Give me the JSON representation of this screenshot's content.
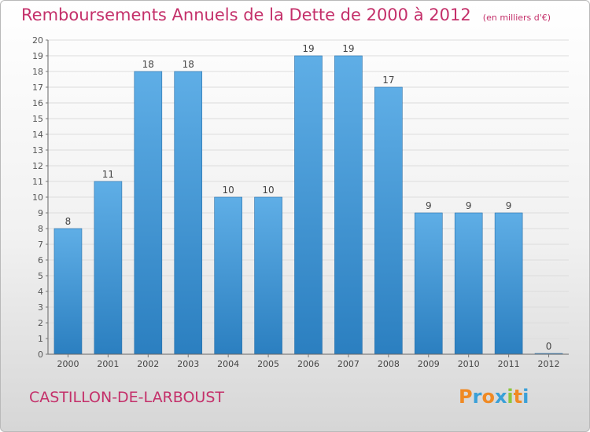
{
  "title": "Remboursements Annuels de la Dette de 2000 à 2012",
  "subtitle": "(en milliers d'€)",
  "commune": "CASTILLON-DE-LARBOUST",
  "logo": {
    "letters": [
      "P",
      "r",
      "o",
      "x",
      "i",
      "t",
      "i"
    ],
    "colors": [
      "#f08a24",
      "#3aa0d8",
      "#f08a24",
      "#3aa0d8",
      "#8cc63e",
      "#f08a24",
      "#3aa0d8"
    ]
  },
  "colors": {
    "bar_top": "#5faee6",
    "bar_bottom": "#2b7fc0",
    "accent": "#c4306a"
  },
  "chart_data": {
    "type": "bar",
    "categories": [
      "2000",
      "2001",
      "2002",
      "2003",
      "2004",
      "2005",
      "2006",
      "2007",
      "2008",
      "2009",
      "2010",
      "2011",
      "2012"
    ],
    "values": [
      8,
      11,
      18,
      18,
      10,
      10,
      19,
      19,
      17,
      9,
      9,
      9,
      0
    ],
    "data_labels": [
      "8",
      "11",
      "18",
      "18",
      "10",
      "10",
      "19",
      "19",
      "17",
      "9",
      "9",
      "9",
      "0"
    ],
    "title": "Remboursements Annuels de la Dette de 2000 à 2012",
    "xlabel": "",
    "ylabel": "",
    "ylim": [
      0,
      20
    ],
    "yticks": [
      0,
      1,
      2,
      3,
      4,
      5,
      6,
      7,
      8,
      9,
      10,
      11,
      12,
      13,
      14,
      15,
      16,
      17,
      18,
      19,
      20
    ],
    "grid": true,
    "legend": "none"
  }
}
